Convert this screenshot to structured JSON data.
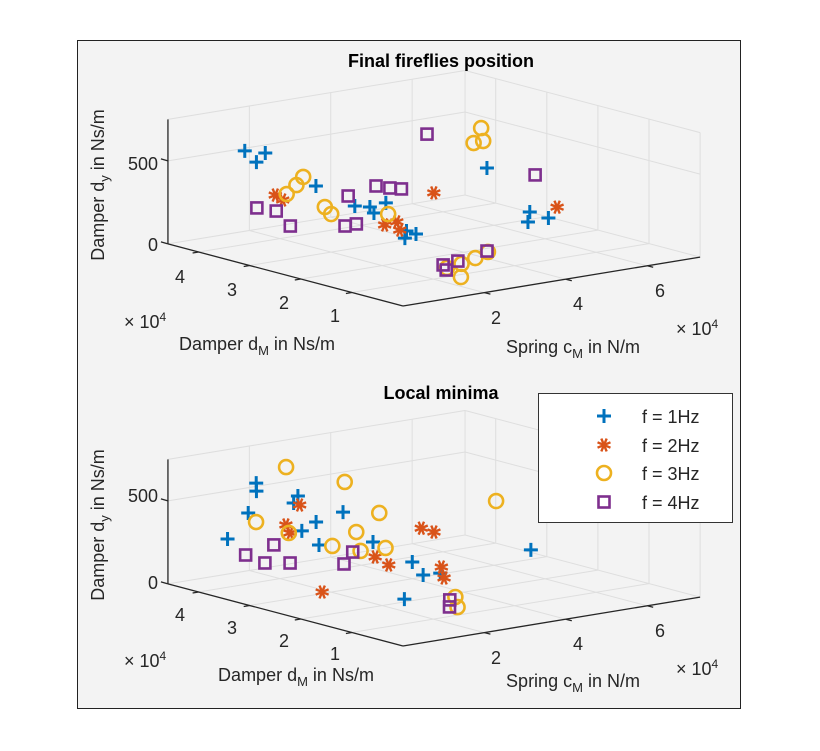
{
  "chart_data": [
    {
      "type": "scatter3d",
      "title": "Final fireflies position",
      "xlabel": {
        "pre": "Spring c",
        "sub": "M",
        "post": " in N/m"
      },
      "ylabel": {
        "pre": "Damper d",
        "sub": "M",
        "post": " in Ns/m"
      },
      "zlabel": {
        "pre": "Damper d",
        "sub": "y",
        "post": " in Ns/m"
      },
      "x_exponent": {
        "base": "× 10",
        "exp": "4"
      },
      "y_exponent": {
        "base": "× 10",
        "exp": "4"
      },
      "xticks": [
        "2",
        "4",
        "6"
      ],
      "yticks": [
        "1",
        "2",
        "3",
        "4"
      ],
      "zticks": [
        "0",
        "500"
      ],
      "xlim": [
        0,
        73000
      ],
      "ylim": [
        0,
        46000
      ],
      "zlim": [
        0,
        750
      ],
      "grid": true,
      "series": [
        {
          "name": "f = 1Hz",
          "marker": "plus",
          "color": "#0072BD",
          "points": [
            [
              12600,
              41000,
              550
            ],
            [
              14500,
              38500,
              550
            ],
            [
              12700,
              38800,
              500
            ],
            [
              22300,
              34800,
              350
            ],
            [
              49000,
              22600,
              450
            ],
            [
              26200,
              30300,
              250
            ],
            [
              27900,
              28700,
              250
            ],
            [
              32700,
              29400,
              250
            ],
            [
              29900,
              29500,
              200
            ],
            [
              34000,
              26400,
              100
            ],
            [
              33700,
              24300,
              100
            ],
            [
              31600,
              24800,
              80
            ],
            [
              54000,
              18200,
              200
            ],
            [
              52800,
              17600,
              150
            ],
            [
              58200,
              17900,
              150
            ]
          ]
        },
        {
          "name": "f = 2Hz",
          "marker": "asterisk",
          "color": "#D95319",
          "points": [
            [
              15700,
              37500,
              300
            ],
            [
              15900,
              36200,
              280
            ],
            [
              29400,
              27000,
              150
            ],
            [
              33000,
              27500,
              150
            ],
            [
              31600,
              25800,
              120
            ],
            [
              36200,
              22800,
              350
            ],
            [
              56200,
              14600,
              250
            ]
          ]
        },
        {
          "name": "f = 3Hz",
          "marker": "circle",
          "color": "#EDB120",
          "points": [
            [
              20800,
              36100,
              400
            ],
            [
              17000,
              34400,
              380
            ],
            [
              18000,
              37100,
              300
            ],
            [
              21100,
              32100,
              250
            ],
            [
              20900,
              30700,
              220
            ],
            [
              29500,
              26400,
              220
            ],
            [
              47200,
              22300,
              700
            ],
            [
              47700,
              22300,
              620
            ],
            [
              45100,
              22100,
              620
            ],
            [
              25600,
              11800,
              30
            ],
            [
              29200,
              11800,
              40
            ],
            [
              32700,
              11900,
              60
            ],
            [
              24400,
              8100,
              10
            ],
            [
              34300,
              10700,
              100
            ]
          ]
        },
        {
          "name": "f = 4Hz",
          "marker": "square",
          "color": "#7E2F8E",
          "points": [
            [
              10300,
              36800,
              250
            ],
            [
              14300,
              36200,
              220
            ],
            [
              14500,
              33600,
              150
            ],
            [
              26200,
              31600,
              300
            ],
            [
              33300,
              31800,
              330
            ],
            [
              35200,
              30600,
              320
            ],
            [
              36400,
              29300,
              320
            ],
            [
              22800,
              29500,
              150
            ],
            [
              25700,
              29600,
              150
            ],
            [
              40300,
              27400,
              650
            ],
            [
              52300,
              15800,
              450
            ],
            [
              34700,
              11200,
              100
            ],
            [
              25800,
              12700,
              40
            ],
            [
              29300,
              12600,
              50
            ],
            [
              24300,
              10900,
              30
            ]
          ]
        }
      ]
    },
    {
      "type": "scatter3d",
      "title": "Local minima",
      "xlabel": {
        "pre": "Spring c",
        "sub": "M",
        "post": " in N/m"
      },
      "ylabel": {
        "pre": "Damper d",
        "sub": "M",
        "post": " in Ns/m"
      },
      "zlabel": {
        "pre": "Damper d",
        "sub": "y",
        "post": " in Ns/m"
      },
      "x_exponent": {
        "base": "× 10",
        "exp": "4"
      },
      "y_exponent": {
        "base": "× 10",
        "exp": "4"
      },
      "xticks": [
        "2",
        "4",
        "6"
      ],
      "yticks": [
        "1",
        "2",
        "3",
        "4"
      ],
      "zticks": [
        "0",
        "500"
      ],
      "xlim": [
        0,
        73000
      ],
      "ylim": [
        0,
        46000
      ],
      "zlim": [
        0,
        750
      ],
      "grid": true,
      "legend": {
        "placement": "top-right",
        "entries": [
          "f = 1Hz",
          "f = 2Hz",
          "f = 3Hz",
          "f = 4Hz"
        ]
      },
      "series": [
        {
          "name": "f = 1Hz",
          "marker": "plus",
          "color": "#0072BD",
          "points": [
            [
              18800,
              43700,
              550
            ],
            [
              17100,
              42300,
              520
            ],
            [
              10000,
              42300,
              260
            ],
            [
              14700,
              42000,
              400
            ],
            [
              24400,
              40000,
              480
            ],
            [
              22600,
              39400,
              450
            ],
            [
              24600,
              36600,
              350
            ],
            [
              22100,
              37400,
              300
            ],
            [
              23300,
              35000,
              230
            ],
            [
              27700,
              33800,
              420
            ],
            [
              31300,
              30800,
              250
            ],
            [
              35300,
              26300,
              150
            ],
            [
              34200,
              23300,
              100
            ],
            [
              37900,
              22900,
              100
            ],
            [
              25200,
              19800,
              20
            ],
            [
              55400,
              19100,
              200
            ]
          ]
        },
        {
          "name": "f = 2Hz",
          "marker": "asterisk",
          "color": "#D95319",
          "points": [
            [
              21200,
              39800,
              320
            ],
            [
              20100,
              38100,
              290
            ],
            [
              25200,
              40300,
              420
            ],
            [
              29700,
              29100,
              180
            ],
            [
              31900,
              28200,
              130
            ],
            [
              16800,
              29200,
              20
            ],
            [
              38900,
              27400,
              330
            ],
            [
              40500,
              26200,
              310
            ],
            [
              36800,
              21800,
              150
            ],
            [
              35700,
              20400,
              100
            ]
          ]
        },
        {
          "name": "f = 3Hz",
          "marker": "circle",
          "color": "#EDB120",
          "points": [
            [
              23000,
              41200,
              650
            ],
            [
              15500,
              41100,
              350
            ],
            [
              19900,
              38200,
              290
            ],
            [
              30000,
              35300,
              580
            ],
            [
              34600,
              32200,
              400
            ],
            [
              29700,
              32800,
              300
            ],
            [
              25700,
              34300,
              220
            ],
            [
              29000,
              31400,
              200
            ],
            [
              34500,
              30900,
              200
            ],
            [
              51500,
              22800,
              480
            ],
            [
              32200,
              15400,
              40
            ],
            [
              29600,
              12900,
              10
            ]
          ]
        },
        {
          "name": "f = 4Hz",
          "marker": "square",
          "color": "#7E2F8E",
          "points": [
            [
              9300,
              38200,
              200
            ],
            [
              12400,
              36900,
              150
            ],
            [
              14600,
              36900,
              250
            ],
            [
              16200,
              35000,
              150
            ],
            [
              23800,
              30500,
              150
            ],
            [
              27200,
              31500,
              200
            ],
            [
              29700,
              14500,
              40
            ],
            [
              28000,
              13200,
              15
            ]
          ]
        }
      ]
    }
  ]
}
